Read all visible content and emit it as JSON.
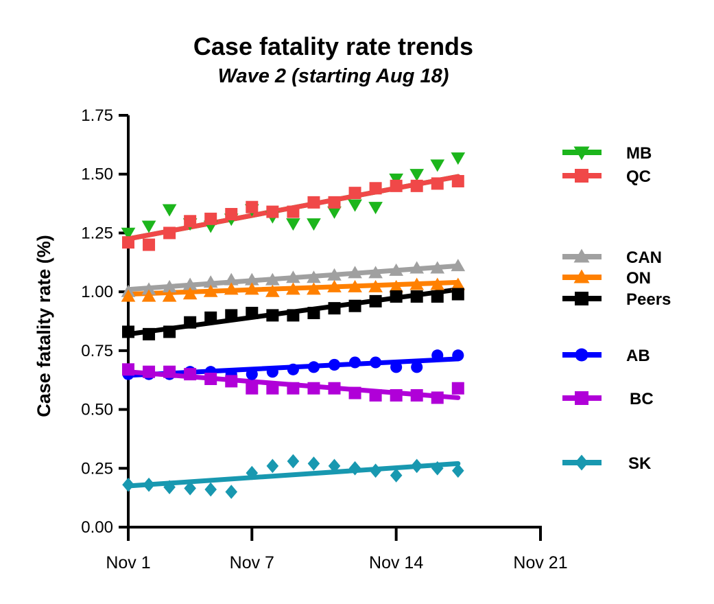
{
  "chart_data": {
    "type": "scatter",
    "title": "Case fatality rate trends",
    "subtitle": "Wave 2 (starting Aug 18)",
    "ylabel": "Case fatality rate (%)",
    "xlabel": "",
    "xlim": [
      1,
      21
    ],
    "ylim": [
      0,
      1.75
    ],
    "x_ticks": [
      {
        "value": 1,
        "label": "Nov 1"
      },
      {
        "value": 7,
        "label": "Nov 7"
      },
      {
        "value": 14,
        "label": "Nov 14"
      },
      {
        "value": 21,
        "label": "Nov 21"
      }
    ],
    "y_ticks": [
      {
        "value": 0,
        "label": "0.00"
      },
      {
        "value": 0.25,
        "label": "0.25"
      },
      {
        "value": 0.5,
        "label": "0.50"
      },
      {
        "value": 0.75,
        "label": "0.75"
      },
      {
        "value": 1.0,
        "label": "1.00"
      },
      {
        "value": 1.25,
        "label": "1.25"
      },
      {
        "value": 1.5,
        "label": "1.50"
      },
      {
        "value": 1.75,
        "label": "1.75"
      }
    ],
    "x": [
      1,
      2,
      3,
      4,
      5,
      6,
      7,
      8,
      9,
      10,
      11,
      12,
      13,
      14,
      15,
      16,
      17
    ],
    "grid": false,
    "legend_position": "right",
    "series": [
      {
        "name": "MB",
        "color": "#1cb51c",
        "marker": "triangle-down",
        "values": [
          1.25,
          1.28,
          1.35,
          1.29,
          1.28,
          1.31,
          1.35,
          1.32,
          1.29,
          1.29,
          1.34,
          1.37,
          1.36,
          1.48,
          1.5,
          1.54,
          1.57
        ],
        "trend": [
          1.225,
          1.49
        ]
      },
      {
        "name": "QC",
        "color": "#f04848",
        "marker": "square",
        "values": [
          1.21,
          1.2,
          1.25,
          1.3,
          1.31,
          1.33,
          1.36,
          1.34,
          1.34,
          1.38,
          1.38,
          1.42,
          1.44,
          1.45,
          1.45,
          1.46,
          1.47
        ],
        "trend": [
          1.225,
          1.49
        ]
      },
      {
        "name": "CAN",
        "color": "#a0a0a0",
        "marker": "triangle-up",
        "values": [
          1.0,
          1.01,
          1.02,
          1.03,
          1.04,
          1.05,
          1.05,
          1.05,
          1.06,
          1.06,
          1.07,
          1.08,
          1.08,
          1.09,
          1.1,
          1.1,
          1.11
        ],
        "trend": [
          1.01,
          1.11
        ]
      },
      {
        "name": "ON",
        "color": "#ff8000",
        "marker": "triangle-up",
        "values": [
          0.98,
          0.98,
          0.98,
          0.99,
          1.0,
          1.01,
          1.01,
          1.0,
          1.01,
          1.01,
          1.02,
          1.02,
          1.02,
          1.02,
          1.03,
          1.03,
          1.03
        ],
        "trend": [
          0.99,
          1.04
        ]
      },
      {
        "name": "Peers",
        "color": "#000000",
        "marker": "square",
        "values": [
          0.83,
          0.82,
          0.83,
          0.87,
          0.89,
          0.9,
          0.91,
          0.9,
          0.9,
          0.91,
          0.93,
          0.94,
          0.96,
          0.98,
          0.98,
          0.98,
          0.99
        ],
        "trend": [
          0.82,
          1.01
        ]
      },
      {
        "name": "AB",
        "color": "#0000ff",
        "marker": "circle",
        "values": [
          0.65,
          0.65,
          0.65,
          0.66,
          0.66,
          0.65,
          0.65,
          0.66,
          0.67,
          0.68,
          0.69,
          0.7,
          0.7,
          0.68,
          0.68,
          0.73,
          0.73
        ],
        "trend": [
          0.645,
          0.715
        ]
      },
      {
        "name": "BC",
        "color": "#b000d8",
        "marker": "square",
        "values": [
          0.67,
          0.66,
          0.66,
          0.65,
          0.63,
          0.62,
          0.59,
          0.59,
          0.59,
          0.59,
          0.59,
          0.57,
          0.56,
          0.56,
          0.56,
          0.55,
          0.59
        ],
        "trend": [
          0.66,
          0.55
        ]
      },
      {
        "name": "SK",
        "color": "#1898b0",
        "marker": "diamond",
        "values": [
          0.18,
          0.18,
          0.17,
          0.165,
          0.16,
          0.15,
          0.23,
          0.26,
          0.28,
          0.27,
          0.26,
          0.25,
          0.24,
          0.22,
          0.26,
          0.25,
          0.24
        ],
        "trend": [
          0.175,
          0.27
        ]
      }
    ]
  }
}
